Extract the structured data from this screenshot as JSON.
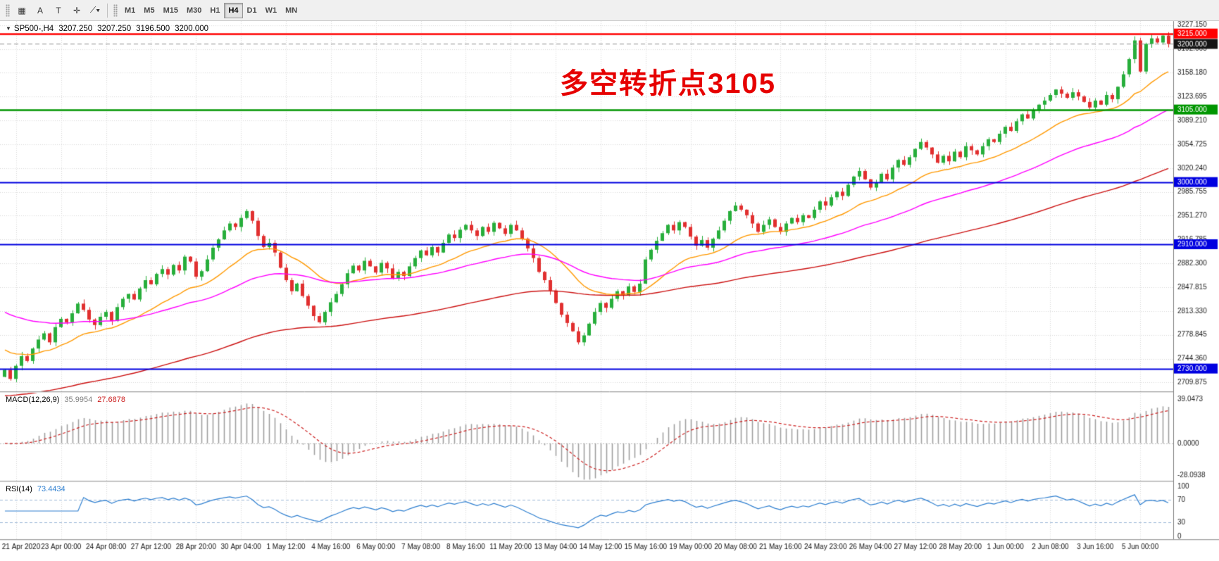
{
  "toolbar": {
    "tools": [
      {
        "id": "chart-windows-icon",
        "glyph": "▦"
      },
      {
        "id": "arrow-tool",
        "glyph": "A"
      },
      {
        "id": "text-tool",
        "glyph": "T"
      },
      {
        "id": "crosshair-icon",
        "glyph": "✛"
      },
      {
        "id": "drawing-tools-dropdown",
        "glyph": "⟋▾"
      }
    ],
    "timeframes": [
      {
        "label": "M1",
        "active": false
      },
      {
        "label": "M5",
        "active": false
      },
      {
        "label": "M15",
        "active": false
      },
      {
        "label": "M30",
        "active": false
      },
      {
        "label": "H1",
        "active": false
      },
      {
        "label": "H4",
        "active": true
      },
      {
        "label": "D1",
        "active": false
      },
      {
        "label": "W1",
        "active": false
      },
      {
        "label": "MN",
        "active": false
      }
    ]
  },
  "header": {
    "symbol": "SP500-,H4",
    "open": "3207.250",
    "high": "3207.250",
    "low": "3196.500",
    "close": "3200.000"
  },
  "annotation": {
    "text": "多空转折点3105",
    "color": "#e60000"
  },
  "macd_label": {
    "name": "MACD(12,26,9)",
    "value_main": "35.9954",
    "value_signal": "27.6878"
  },
  "rsi_label": {
    "name": "RSI(14)",
    "value": "73.4434"
  },
  "chart_data": {
    "type": "candlestick",
    "symbol": "SP500-",
    "timeframe": "H4",
    "title": "SP500-,H4 3207.250 3207.250 3196.500 3200.000",
    "ylim": [
      2697,
      3233
    ],
    "y_ticks": [
      "3227.150",
      "3192.665",
      "3158.180",
      "3123.695",
      "3089.210",
      "3054.725",
      "3020.240",
      "2985.755",
      "2951.270",
      "2916.785",
      "2882.300",
      "2847.815",
      "2813.330",
      "2778.845",
      "2744.360",
      "2709.875"
    ],
    "x_labels": [
      "21 Apr 2020",
      "23 Apr 00:00",
      "24 Apr 08:00",
      "27 Apr 12:00",
      "28 Apr 20:00",
      "30 Apr 04:00",
      "1 May 12:00",
      "4 May 16:00",
      "6 May 00:00",
      "7 May 08:00",
      "8 May 16:00",
      "11 May 20:00",
      "13 May 04:00",
      "14 May 12:00",
      "15 May 16:00",
      "19 May 00:00",
      "20 May 08:00",
      "21 May 16:00",
      "24 May 23:00",
      "26 May 04:00",
      "27 May 12:00",
      "28 May 20:00",
      "1 Jun 00:00",
      "2 Jun 08:00",
      "3 Jun 16:00",
      "5 Jun 00:00"
    ],
    "label_step_candles": 8,
    "label_first_index": 2,
    "first_open": 2718,
    "closes": [
      2728,
      2715,
      2734,
      2748,
      2741,
      2759,
      2772,
      2781,
      2768,
      2790,
      2802,
      2797,
      2810,
      2824,
      2815,
      2801,
      2793,
      2805,
      2812,
      2799,
      2819,
      2831,
      2838,
      2830,
      2846,
      2858,
      2852,
      2867,
      2874,
      2866,
      2880,
      2872,
      2892,
      2885,
      2863,
      2871,
      2888,
      2905,
      2917,
      2930,
      2940,
      2935,
      2948,
      2958,
      2944,
      2922,
      2906,
      2912,
      2898,
      2876,
      2858,
      2842,
      2853,
      2835,
      2821,
      2806,
      2797,
      2812,
      2826,
      2838,
      2852,
      2868,
      2879,
      2872,
      2886,
      2878,
      2869,
      2883,
      2875,
      2861,
      2870,
      2864,
      2878,
      2890,
      2901,
      2894,
      2906,
      2898,
      2912,
      2924,
      2919,
      2931,
      2938,
      2930,
      2922,
      2935,
      2928,
      2941,
      2933,
      2925,
      2938,
      2930,
      2918,
      2904,
      2890,
      2870,
      2858,
      2843,
      2825,
      2808,
      2796,
      2784,
      2768,
      2778,
      2795,
      2812,
      2825,
      2818,
      2831,
      2842,
      2836,
      2849,
      2841,
      2853,
      2888,
      2902,
      2915,
      2926,
      2938,
      2930,
      2942,
      2935,
      2921,
      2908,
      2916,
      2905,
      2918,
      2930,
      2944,
      2958,
      2966,
      2960,
      2952,
      2940,
      2928,
      2938,
      2946,
      2935,
      2928,
      2940,
      2948,
      2942,
      2952,
      2948,
      2960,
      2972,
      2966,
      2978,
      2986,
      2980,
      2996,
      3008,
      3016,
      3004,
      2992,
      2999,
      3012,
      3004,
      3021,
      3032,
      3025,
      3036,
      3048,
      3058,
      3050,
      3040,
      3028,
      3038,
      3030,
      3044,
      3036,
      3052,
      3046,
      3040,
      3052,
      3062,
      3058,
      3070,
      3080,
      3074,
      3088,
      3098,
      3092,
      3104,
      3112,
      3118,
      3126,
      3134,
      3128,
      3122,
      3130,
      3124,
      3116,
      3108,
      3118,
      3112,
      3126,
      3120,
      3138,
      3156,
      3178,
      3205,
      3160,
      3200,
      3208,
      3202,
      3212,
      3200
    ],
    "up_color": "#27ae3b",
    "down_color": "#e12f2f",
    "levels": [
      {
        "price": 3215.0,
        "label": "3215.000",
        "color": "#ff0000",
        "style": "solid",
        "width": 2.5,
        "tag_bg": "#ff0000"
      },
      {
        "price": 3200.0,
        "label": "3200.000",
        "color": "#8c8c8c",
        "style": "dashed",
        "width": 1,
        "tag_bg": "#141414"
      },
      {
        "price": 3105.0,
        "label": "3105.000",
        "color": "#009600",
        "style": "solid",
        "width": 2.5,
        "tag_bg": "#009600"
      },
      {
        "price": 3000.0,
        "label": "3000.000",
        "color": "#0000e0",
        "style": "solid",
        "width": 2,
        "tag_bg": "#0000e0"
      },
      {
        "price": 2910.0,
        "label": "2910.000",
        "color": "#0000e0",
        "style": "solid",
        "width": 2,
        "tag_bg": "#0000e0"
      },
      {
        "price": 2730.0,
        "label": "2730.000",
        "color": "#0000e0",
        "style": "solid",
        "width": 2,
        "tag_bg": "#0000e0"
      }
    ],
    "moving_averages": [
      {
        "type": "ema",
        "period": 20,
        "seed": 2760,
        "color": "#ff9900",
        "name": "fast-ma"
      },
      {
        "type": "ema",
        "period": 50,
        "seed": 2815,
        "color": "#ff00ff",
        "name": "mid-ma"
      },
      {
        "type": "ema",
        "period": 120,
        "seed": 2690,
        "color": "#cc1111",
        "name": "slow-ma"
      }
    ],
    "macd": {
      "fast": 12,
      "slow": 26,
      "signal": 9,
      "ylim": [
        -33,
        44
      ],
      "y_ticks": [
        {
          "v": 39.0473,
          "label": "39.0473"
        },
        {
          "v": 0,
          "label": "0.0000"
        },
        {
          "v": -28.0938,
          "label": "-28.0938"
        }
      ],
      "hist_color": "#a0a0a0",
      "signal_color": "#cc2020"
    },
    "rsi": {
      "period": 14,
      "ylim": [
        0,
        100
      ],
      "levels": [
        70,
        30
      ],
      "y_ticks": [
        {
          "v": 100,
          "label": "100"
        },
        {
          "v": 70,
          "label": "70"
        },
        {
          "v": 30,
          "label": "30"
        },
        {
          "v": 0,
          "label": "0"
        }
      ],
      "line_color": "#2e7fd0",
      "level_color": "#9db8d8"
    },
    "grid": {
      "color": "#d9d9d9",
      "on": true
    }
  }
}
